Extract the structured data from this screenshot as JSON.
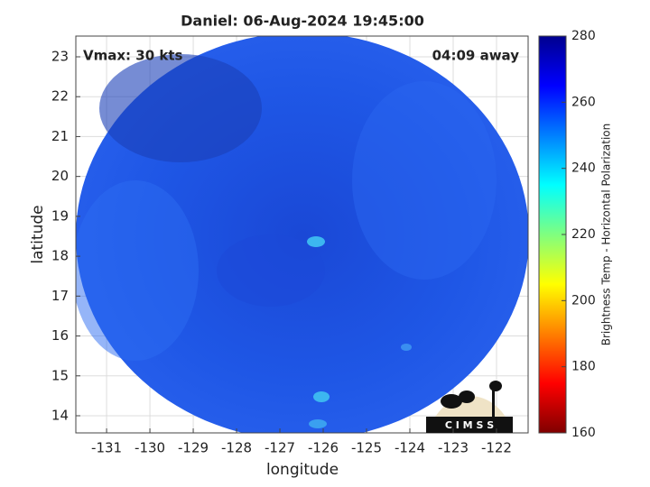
{
  "chart_data": {
    "type": "map",
    "title": "Daniel: 06-Aug-2024 19:45:00",
    "annotations": [
      "Vmax: 30 kts",
      "04:09 away"
    ],
    "xlabel": "longitude",
    "ylabel": "latitude",
    "xlim": [
      -131.71,
      -121.27
    ],
    "ylim": [
      13.57,
      23.52
    ],
    "xticks": [
      -131,
      -130,
      -129,
      -128,
      -127,
      -126,
      -125,
      -124,
      -123,
      -122
    ],
    "yticks": [
      14,
      15,
      16,
      17,
      18,
      19,
      20,
      21,
      22,
      23
    ],
    "grid": true,
    "colorbar": {
      "label": "Brightness Temp - Horizontal Polarization",
      "lim": [
        160,
        280
      ],
      "ticks": [
        160,
        180,
        200,
        220,
        240,
        260,
        280
      ],
      "colormap": "jet"
    },
    "logo_text": "C I M S S"
  }
}
